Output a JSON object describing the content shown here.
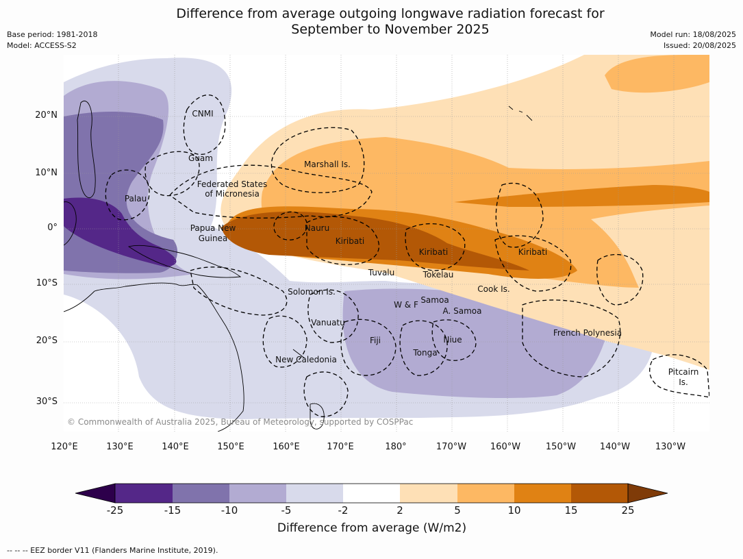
{
  "title": {
    "line1": "Difference from average outgoing longwave radiation forecast for",
    "line2": "September to November 2025"
  },
  "meta": {
    "base_period": "Base period: 1981-2018",
    "model": "Model: ACCESS-S2",
    "model_run": "Model run: 18/08/2025",
    "issued": "Issued: 20/08/2025"
  },
  "axes": {
    "lon_labels": [
      "120°E",
      "130°E",
      "140°E",
      "150°E",
      "160°E",
      "170°E",
      "180°",
      "170°W",
      "160°W",
      "150°W",
      "140°W",
      "130°W"
    ],
    "lat_labels": [
      "20°N",
      "10°N",
      "0°",
      "10°S",
      "20°S",
      "30°S"
    ]
  },
  "places": {
    "cnmi": "CNMI",
    "guam": "Guam",
    "marshall": "Marshall Is.",
    "fsm_1": "Federated States",
    "fsm_2": "of Micronesia",
    "palau": "Palau",
    "png_1": "Papua New",
    "png_2": "Guinea",
    "nauru": "Nauru",
    "kiribati_w": "Kiribati",
    "kiribati_c": "Kiribati",
    "kiribati_e": "Kiribati",
    "tuvalu": "Tuvalu",
    "tokelau": "Tokelau",
    "cook": "Cook Is.",
    "solomon": "Solomon Is.",
    "wf": "W & F",
    "samoa": "Samoa",
    "asamoa": "A. Samoa",
    "vanuatu": "Vanuatu",
    "fiji": "Fiji",
    "niue": "Niue",
    "tonga": "Tonga",
    "newcal": "New Caledonia",
    "frpoly": "French Polynesia",
    "pitcairn_1": "Pitcairn",
    "pitcairn_2": "Is."
  },
  "copyright": "© Commonwealth of Australia 2025, Bureau of Meteorology, supported by COSPPac",
  "colorbar": {
    "title": "Difference from average (W/m2)",
    "tick_labels": [
      "-25",
      "-15",
      "-10",
      "-5",
      "-2",
      "2",
      "5",
      "10",
      "15",
      "25"
    ],
    "colors": {
      "under": "#2d004b",
      "bins": [
        "#542788",
        "#8073ac",
        "#b2abd2",
        "#d8daeb",
        "#ffffff",
        "#fee0b6",
        "#fdb863",
        "#e08214",
        "#b35806"
      ],
      "over": "#7f3b08"
    }
  },
  "footnote": "--  --  -- EEZ border V11 (Flanders Marine Institute, 2019)."
}
